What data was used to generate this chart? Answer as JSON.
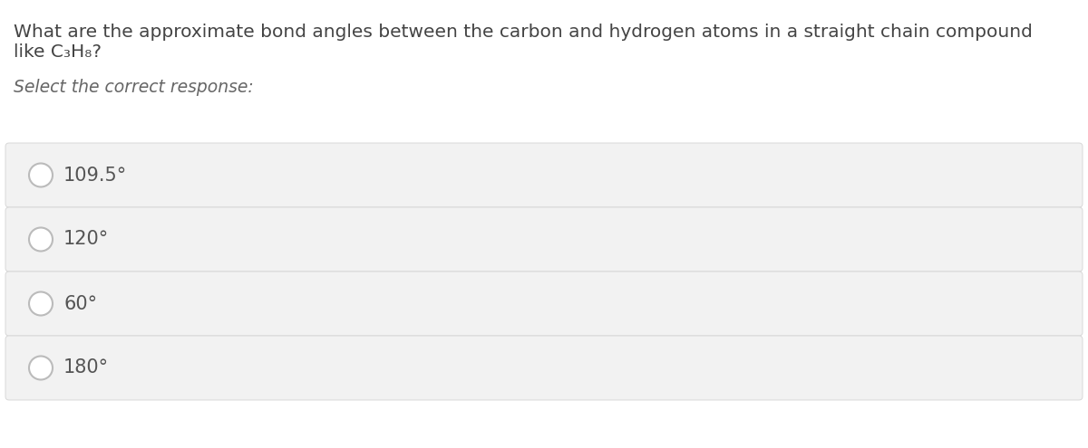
{
  "background_color": "#ffffff",
  "question_line1": "What are the approximate bond angles between the carbon and hydrogen atoms in a straight chain compound",
  "question_line2_parts": [
    {
      "text": "like C",
      "style": "normal"
    },
    {
      "text": "3",
      "style": "sub"
    },
    {
      "text": "H",
      "style": "normal"
    },
    {
      "text": "8",
      "style": "sub"
    },
    {
      "text": "?",
      "style": "normal"
    }
  ],
  "select_text": "Select the correct response:",
  "options": [
    "109.5°",
    "120°",
    "60°",
    "180°"
  ],
  "option_box_color": "#f2f2f2",
  "option_box_edge_color": "#d8d8d8",
  "option_text_color": "#555555",
  "question_text_color": "#444444",
  "select_text_color": "#666666",
  "circle_edge_color": "#bbbbbb",
  "circle_face_color": "#ffffff",
  "question_fontsize": 14.5,
  "select_fontsize": 13.5,
  "option_fontsize": 15
}
